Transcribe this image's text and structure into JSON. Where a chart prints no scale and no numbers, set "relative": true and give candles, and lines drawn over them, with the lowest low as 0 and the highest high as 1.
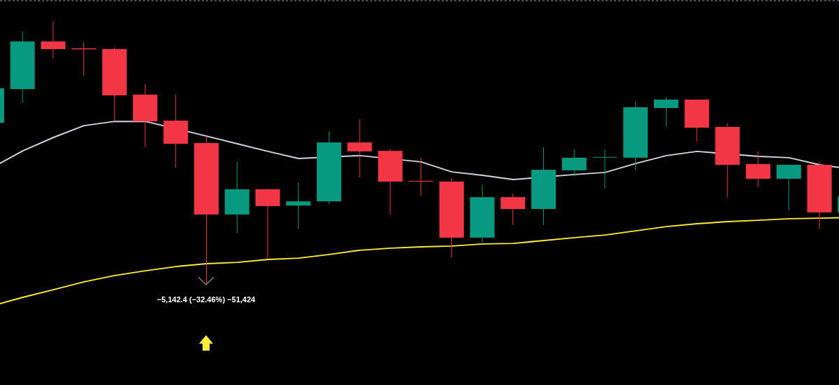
{
  "chart_data": {
    "type": "candlestick",
    "relative": true,
    "tick_labels": false,
    "categories": [
      null,
      null,
      null,
      null,
      null,
      null,
      null,
      null,
      null,
      null,
      null,
      null,
      null,
      null,
      null,
      null,
      null,
      null,
      null,
      null,
      null,
      null,
      null,
      null,
      null,
      null,
      null,
      null,
      null
    ],
    "ohlc": [
      [
        0.616,
        0.747,
        0.616,
        0.747
      ],
      [
        0.744,
        0.963,
        0.691,
        0.925
      ],
      [
        0.925,
        1.0,
        0.861,
        0.896
      ],
      [
        0.899,
        0.923,
        0.795,
        0.895
      ],
      [
        0.896,
        0.901,
        0.621,
        0.72
      ],
      [
        0.723,
        0.763,
        0.523,
        0.621
      ],
      [
        0.624,
        0.723,
        0.445,
        0.536
      ],
      [
        0.539,
        0.563,
        0,
        0.267
      ],
      [
        0.267,
        0.467,
        0.197,
        0.363
      ],
      [
        0.363,
        0.365,
        0.096,
        0.299
      ],
      [
        0.301,
        0.389,
        0.213,
        0.317
      ],
      [
        0.317,
        0.584,
        0.307,
        0.541
      ],
      [
        0.541,
        0.629,
        0.408,
        0.507
      ],
      [
        0.509,
        0.517,
        0.267,
        0.392
      ],
      [
        0.395,
        0.483,
        0.339,
        0.392
      ],
      [
        0.392,
        0.405,
        0.104,
        0.179
      ],
      [
        0.179,
        0.381,
        0.16,
        0.333
      ],
      [
        0.333,
        0.347,
        0.227,
        0.288
      ],
      [
        0.288,
        0.523,
        0.227,
        0.437
      ],
      [
        0.435,
        0.515,
        0.413,
        0.483
      ],
      [
        0.484,
        0.515,
        0.365,
        0.486
      ],
      [
        0.483,
        0.696,
        0.437,
        0.675
      ],
      [
        0.672,
        0.712,
        0.603,
        0.704
      ],
      [
        0.704,
        0.704,
        0.544,
        0.597
      ],
      [
        0.6,
        0.613,
        0.331,
        0.456
      ],
      [
        0.459,
        0.507,
        0.371,
        0.403
      ],
      [
        0.403,
        0.456,
        0.283,
        0.456
      ],
      [
        0.456,
        0.467,
        0.211,
        0.275
      ],
      [
        0.275,
        0.336,
        0.275,
        0.336
      ]
    ],
    "colors": [
      "#089981",
      "#089981",
      "#f23645",
      "#f23645",
      "#f23645",
      "#f23645",
      "#f23645",
      "#f23645",
      "#089981",
      "#f23645",
      "#089981",
      "#089981",
      "#f23645",
      "#f23645",
      "#f23645",
      "#f23645",
      "#089981",
      "#f23645",
      "#089981",
      "#089981",
      "#089981",
      "#089981",
      "#089981",
      "#f23645",
      "#f23645",
      "#f23645",
      "#089981",
      "#f23645",
      "#089981"
    ],
    "series": [
      {
        "type": "line",
        "color": "#d1d4dc",
        "marker": "none",
        "values": [
          0.445,
          0.509,
          0.56,
          0.605,
          0.621,
          0.621,
          null,
          0.565,
          0.536,
          0.507,
          0.48,
          null,
          0.491,
          null,
          0.467,
          0.429,
          0.416,
          0.4,
          null,
          0.419,
          0.427,
          0.461,
          0.491,
          0.507,
          null,
          0.488,
          0.483,
          0.456,
          0.44
        ]
      },
      {
        "type": "line",
        "color": "#ffeb3b",
        "marker": "none",
        "values": [
          -0.08,
          -0.048,
          -0.019,
          0.011,
          0.035,
          0.053,
          0.069,
          0.08,
          0.085,
          0.096,
          0.101,
          0.115,
          0.131,
          0.139,
          0.144,
          0.147,
          0.155,
          0.157,
          0.168,
          0.179,
          0.189,
          0.205,
          0.221,
          0.232,
          0.24,
          0.245,
          0.251,
          0.253,
          0.256
        ]
      }
    ],
    "ref_lines": [
      {
        "axis": "y",
        "value": 1.08,
        "color": "#9598a1",
        "line_style": "dashed"
      }
    ],
    "annotations": [
      "−5,142.4 (−32.46%) −51,424"
    ]
  }
}
